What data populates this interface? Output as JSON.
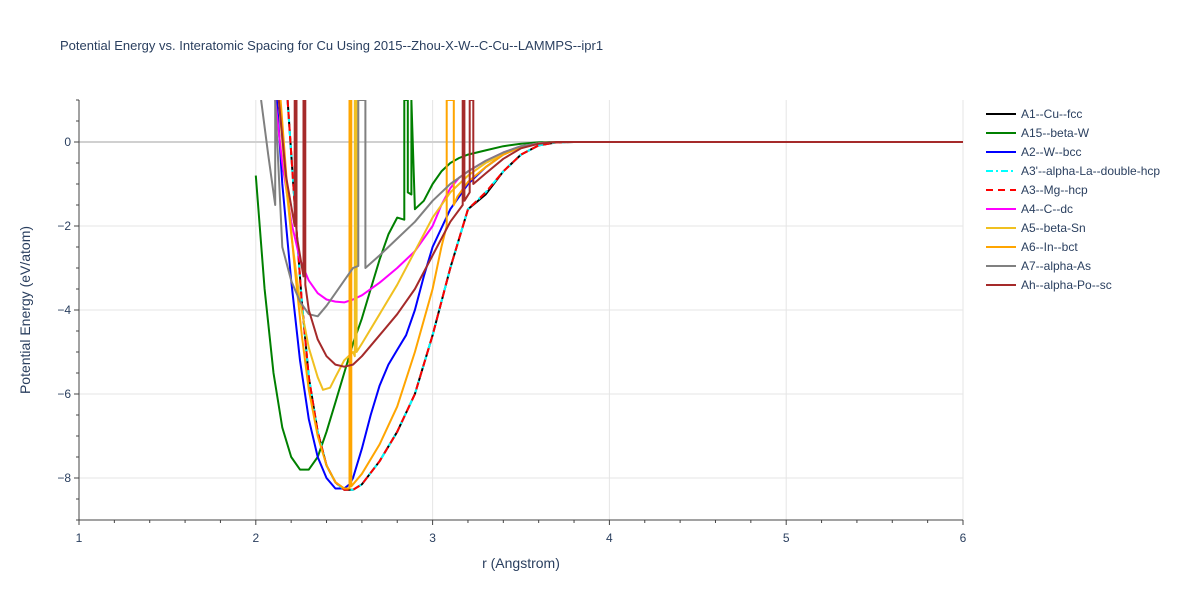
{
  "chart_data": {
    "type": "line",
    "title": "Potential Energy vs. Interatomic Spacing for Cu Using 2015--Zhou-X-W--C-Cu--LAMMPS--ipr1",
    "xlabel": "r (Angstrom)",
    "ylabel": "Potential Energy (eV/atom)",
    "xlim": [
      1,
      6
    ],
    "ylim": [
      -9,
      1
    ],
    "xticks": [
      1,
      2,
      3,
      4,
      5,
      6
    ],
    "yticks": [
      0,
      -2,
      -4,
      -6,
      -8
    ],
    "ytick_labels": [
      "0",
      "−2",
      "−4",
      "−6",
      "−8"
    ],
    "grid": true,
    "legend_position": "right",
    "series": [
      {
        "name": "A1--Cu--fcc",
        "color": "#000000",
        "dash": "solid",
        "x": [
          2.18,
          2.22,
          2.26,
          2.3,
          2.35,
          2.4,
          2.45,
          2.5,
          2.55,
          2.6,
          2.7,
          2.8,
          2.9,
          3.0,
          3.1,
          3.2,
          3.3,
          3.4,
          3.5,
          3.6,
          3.7,
          3.8,
          4.0,
          5.0,
          6.0
        ],
        "y": [
          1.0,
          -1.5,
          -3.8,
          -5.6,
          -6.9,
          -7.7,
          -8.1,
          -8.28,
          -8.28,
          -8.15,
          -7.6,
          -6.9,
          -6.0,
          -4.6,
          -3.0,
          -1.6,
          -1.25,
          -0.7,
          -0.3,
          -0.08,
          -0.01,
          0,
          0,
          0,
          0
        ]
      },
      {
        "name": "A15--beta-W",
        "color": "#008000",
        "dash": "solid",
        "x": [
          2.0,
          2.05,
          2.1,
          2.15,
          2.2,
          2.25,
          2.3,
          2.35,
          2.4,
          2.45,
          2.5,
          2.55,
          2.6,
          2.65,
          2.7,
          2.75,
          2.8,
          2.84,
          2.84,
          2.86,
          2.86,
          2.88,
          2.88,
          2.9,
          2.95,
          3.0,
          3.05,
          3.1,
          3.15,
          3.2,
          3.3,
          3.4,
          3.5,
          3.6,
          3.7,
          4.0,
          5.0,
          6.0
        ],
        "y": [
          -0.8,
          -3.5,
          -5.5,
          -6.8,
          -7.5,
          -7.8,
          -7.8,
          -7.5,
          -6.9,
          -6.2,
          -5.5,
          -4.8,
          -4.2,
          -3.5,
          -2.8,
          -2.2,
          -1.8,
          -1.85,
          1.0,
          1.0,
          -1.2,
          -1.25,
          1.0,
          -1.6,
          -1.4,
          -1.0,
          -0.7,
          -0.5,
          -0.38,
          -0.3,
          -0.2,
          -0.1,
          -0.04,
          -0.01,
          0,
          0,
          0,
          0
        ]
      },
      {
        "name": "A2--W--bcc",
        "color": "#0000ff",
        "dash": "solid",
        "x": [
          2.12,
          2.15,
          2.2,
          2.25,
          2.3,
          2.35,
          2.4,
          2.45,
          2.5,
          2.53,
          2.55,
          2.6,
          2.65,
          2.7,
          2.75,
          2.8,
          2.85,
          2.9,
          2.95,
          3.0,
          3.1,
          3.2,
          3.3,
          3.4,
          3.5,
          3.6,
          3.7,
          4.0,
          5.0,
          6.0
        ],
        "y": [
          1.0,
          -1.0,
          -3.3,
          -5.2,
          -6.6,
          -7.5,
          -8.0,
          -8.25,
          -8.25,
          -8.15,
          -8.0,
          -7.3,
          -6.5,
          -5.8,
          -5.3,
          -4.95,
          -4.6,
          -4.0,
          -3.2,
          -2.5,
          -1.6,
          -1.0,
          -0.6,
          -0.3,
          -0.12,
          -0.03,
          0,
          0,
          0,
          0
        ]
      },
      {
        "name": "A3'--alpha-La--double-hcp",
        "color": "#00ffff",
        "dash": "dashdot",
        "x": [
          2.18,
          2.22,
          2.26,
          2.3,
          2.35,
          2.4,
          2.45,
          2.5,
          2.55,
          2.6,
          2.7,
          2.8,
          2.9,
          3.0,
          3.1,
          3.2,
          3.3,
          3.4,
          3.5,
          3.6,
          3.7,
          3.8,
          4.0,
          5.0,
          6.0
        ],
        "y": [
          1.0,
          -1.5,
          -3.8,
          -5.6,
          -6.9,
          -7.7,
          -8.1,
          -8.28,
          -8.28,
          -8.15,
          -7.6,
          -6.9,
          -6.0,
          -4.6,
          -3.0,
          -1.6,
          -1.2,
          -0.7,
          -0.3,
          -0.08,
          -0.01,
          0,
          0,
          0,
          0
        ]
      },
      {
        "name": "A3--Mg--hcp",
        "color": "#ff0000",
        "dash": "dash",
        "x": [
          2.18,
          2.22,
          2.26,
          2.3,
          2.35,
          2.4,
          2.45,
          2.5,
          2.55,
          2.6,
          2.7,
          2.8,
          2.9,
          3.0,
          3.1,
          3.2,
          3.3,
          3.4,
          3.5,
          3.6,
          3.7,
          3.8,
          4.0,
          5.0,
          6.0
        ],
        "y": [
          1.0,
          -1.5,
          -3.8,
          -5.6,
          -6.9,
          -7.7,
          -8.1,
          -8.28,
          -8.28,
          -8.15,
          -7.6,
          -6.9,
          -6.0,
          -4.6,
          -3.0,
          -1.6,
          -1.2,
          -0.7,
          -0.3,
          -0.08,
          -0.01,
          0,
          0,
          0,
          0
        ]
      },
      {
        "name": "A4--C--dc",
        "color": "#ff00ff",
        "dash": "solid",
        "x": [
          2.11,
          2.15,
          2.2,
          2.25,
          2.3,
          2.35,
          2.4,
          2.45,
          2.5,
          2.55,
          2.6,
          2.7,
          2.8,
          2.9,
          3.0,
          3.05,
          3.1,
          3.15,
          3.2,
          3.3,
          3.4,
          3.5,
          3.6,
          3.7,
          4.0,
          5.0,
          6.0
        ],
        "y": [
          1.0,
          -0.5,
          -1.9,
          -2.8,
          -3.3,
          -3.6,
          -3.75,
          -3.8,
          -3.82,
          -3.75,
          -3.65,
          -3.35,
          -3.0,
          -2.6,
          -2.0,
          -1.5,
          -1.1,
          -0.85,
          -0.7,
          -0.45,
          -0.25,
          -0.1,
          -0.03,
          0,
          0,
          0,
          0
        ]
      },
      {
        "name": "A5--beta-Sn",
        "color": "#f0c020",
        "dash": "solid",
        "x": [
          2.13,
          2.17,
          2.2,
          2.25,
          2.3,
          2.35,
          2.38,
          2.42,
          2.45,
          2.5,
          2.55,
          2.56,
          2.56,
          2.57,
          2.57,
          2.6,
          2.7,
          2.8,
          2.9,
          3.0,
          3.1,
          3.2,
          3.3,
          3.4,
          3.5,
          3.6,
          3.7,
          4.0,
          5.0,
          6.0
        ],
        "y": [
          1.0,
          -1.0,
          -2.2,
          -3.8,
          -4.9,
          -5.6,
          -5.9,
          -5.85,
          -5.6,
          -5.2,
          -5.0,
          -5.1,
          1.0,
          1.0,
          -5.0,
          -4.8,
          -4.1,
          -3.4,
          -2.6,
          -1.8,
          -1.2,
          -0.8,
          -0.5,
          -0.3,
          -0.12,
          -0.03,
          0,
          0,
          0,
          0
        ]
      },
      {
        "name": "A6--In--bct",
        "color": "#ffa500",
        "dash": "solid",
        "x": [
          2.14,
          2.18,
          2.22,
          2.26,
          2.3,
          2.35,
          2.4,
          2.45,
          2.5,
          2.53,
          2.53,
          2.54,
          2.54,
          2.6,
          2.7,
          2.8,
          2.9,
          3.0,
          3.05,
          3.08,
          3.08,
          3.12,
          3.12,
          3.14,
          3.2,
          3.3,
          3.4,
          3.5,
          3.6,
          3.7,
          4.0,
          5.0,
          6.0
        ],
        "y": [
          1.0,
          -1.2,
          -3.0,
          -4.6,
          -5.9,
          -7.0,
          -7.7,
          -8.1,
          -8.25,
          -8.25,
          1.0,
          1.0,
          -8.2,
          -7.9,
          -7.2,
          -6.3,
          -5.0,
          -3.5,
          -2.5,
          -2.0,
          1.0,
          1.0,
          -1.5,
          -1.3,
          -0.95,
          -0.6,
          -0.3,
          -0.12,
          -0.03,
          0,
          0,
          0,
          0
        ]
      },
      {
        "name": "A7--alpha-As",
        "color": "#808080",
        "dash": "solid",
        "x": [
          2.03,
          2.07,
          2.11,
          2.11,
          2.15,
          2.2,
          2.25,
          2.3,
          2.35,
          2.4,
          2.45,
          2.5,
          2.55,
          2.58,
          2.58,
          2.62,
          2.62,
          2.7,
          2.8,
          2.9,
          3.0,
          3.1,
          3.2,
          3.3,
          3.4,
          3.5,
          3.6,
          3.7,
          4.0,
          5.0,
          6.0
        ],
        "y": [
          1.0,
          -0.3,
          -1.5,
          1.0,
          -2.5,
          -3.3,
          -3.8,
          -4.1,
          -4.15,
          -3.9,
          -3.6,
          -3.3,
          -3.0,
          -2.95,
          1.0,
          1.0,
          -3.0,
          -2.7,
          -2.3,
          -1.9,
          -1.4,
          -1.0,
          -0.7,
          -0.45,
          -0.25,
          -0.1,
          -0.03,
          0,
          0,
          0,
          0
        ]
      },
      {
        "name": "Ah--alpha-Po--sc",
        "color": "#a52a2a",
        "dash": "solid",
        "x": [
          2.13,
          2.17,
          2.22,
          2.22,
          2.23,
          2.23,
          2.27,
          2.27,
          2.28,
          2.28,
          2.3,
          2.35,
          2.4,
          2.45,
          2.5,
          2.55,
          2.6,
          2.7,
          2.8,
          2.9,
          3.0,
          3.1,
          3.17,
          3.17,
          3.18,
          3.18,
          3.21,
          3.21,
          3.23,
          3.23,
          3.3,
          3.4,
          3.5,
          3.6,
          3.7,
          4.0,
          5.0,
          6.0
        ],
        "y": [
          1.0,
          -0.8,
          -2.0,
          1.0,
          1.0,
          -2.2,
          -3.2,
          1.0,
          1.0,
          -3.4,
          -4.0,
          -4.7,
          -5.1,
          -5.3,
          -5.35,
          -5.3,
          -5.1,
          -4.6,
          -4.1,
          -3.5,
          -2.7,
          -1.9,
          -1.5,
          1.0,
          1.0,
          -1.4,
          -1.2,
          1.0,
          1.0,
          -1.0,
          -0.75,
          -0.4,
          -0.15,
          -0.04,
          0,
          0,
          0,
          0
        ]
      }
    ]
  }
}
